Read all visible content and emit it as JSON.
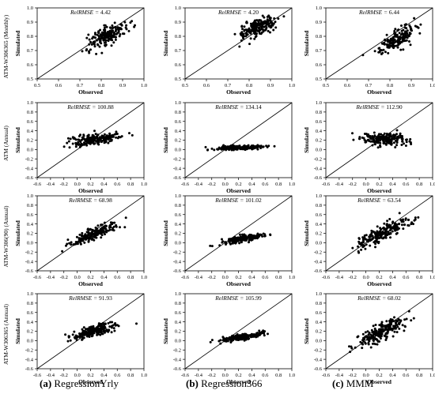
{
  "chart_data": [
    {
      "type": "scatter",
      "row_label": "ATM-W306365 (Monthly)",
      "column_label": "(a) RegressionYrly",
      "xlabel": "Observed",
      "ylabel": "Simulated",
      "metric_label": "RelRMSE",
      "metric_value": "4.42",
      "xlim": [
        0.5,
        1.0
      ],
      "ylim": [
        0.5,
        1.0
      ],
      "xticks": [
        "0.5",
        "0.6",
        "0.7",
        "0.8",
        "0.9",
        "1.0"
      ],
      "yticks": [
        "0.5",
        "0.6",
        "0.7",
        "0.8",
        "0.9",
        "1.0"
      ],
      "one_to_one_line": true,
      "cluster": {
        "x_center": 0.83,
        "x_spread": 0.045,
        "y_center": 0.81,
        "y_spread": 0.035,
        "slope": 0.7,
        "n": 180
      }
    },
    {
      "type": "scatter",
      "row_label": "ATM-W306365 (Monthly)",
      "column_label": "(b) Regression366",
      "xlabel": "Observed",
      "ylabel": "Simulated",
      "metric_label": "RelRMSE",
      "metric_value": "4.20",
      "xlim": [
        0.5,
        1.0
      ],
      "ylim": [
        0.5,
        1.0
      ],
      "xticks": [
        "0.5",
        "0.6",
        "0.7",
        "0.8",
        "0.9",
        "1.0"
      ],
      "yticks": [
        "0.5",
        "0.6",
        "0.7",
        "0.8",
        "0.9",
        "1.0"
      ],
      "one_to_one_line": true,
      "cluster": {
        "x_center": 0.84,
        "x_spread": 0.045,
        "y_center": 0.86,
        "y_spread": 0.03,
        "slope": 0.55,
        "n": 180
      }
    },
    {
      "type": "scatter",
      "row_label": "ATM-W306365 (Monthly)",
      "column_label": "(c) MMM",
      "xlabel": "Observed",
      "ylabel": "Simulated",
      "metric_label": "RelRMSE",
      "metric_value": "6.44",
      "xlim": [
        0.5,
        1.0
      ],
      "ylim": [
        0.5,
        1.0
      ],
      "xticks": [
        "0.5",
        "0.6",
        "0.7",
        "0.8",
        "0.9",
        "1.0"
      ],
      "yticks": [
        "0.5",
        "0.6",
        "0.7",
        "0.8",
        "0.9",
        "1.0"
      ],
      "one_to_one_line": true,
      "cluster": {
        "x_center": 0.83,
        "x_spread": 0.045,
        "y_center": 0.78,
        "y_spread": 0.03,
        "slope": 0.85,
        "n": 180
      }
    },
    {
      "type": "scatter",
      "row_label": "ATM (Annual)",
      "column_label": "(a) RegressionYrly",
      "xlabel": "Observed",
      "ylabel": "Simulated",
      "metric_label": "RelRMSE",
      "metric_value": "100.88",
      "xlim": [
        -0.6,
        1.0
      ],
      "ylim": [
        -0.6,
        1.0
      ],
      "xticks": [
        "-0.6",
        "-0.4",
        "-0.2",
        "0.0",
        "0.2",
        "0.4",
        "0.6",
        "0.8",
        "1.0"
      ],
      "yticks": [
        "-0.6",
        "-0.4",
        "-0.2",
        "0.0",
        "0.2",
        "0.4",
        "0.6",
        "0.8",
        "1.0"
      ],
      "one_to_one_line": true,
      "cluster": {
        "x_center": 0.25,
        "x_spread": 0.18,
        "y_center": 0.22,
        "y_spread": 0.06,
        "slope": 0.15,
        "n": 200
      }
    },
    {
      "type": "scatter",
      "row_label": "ATM (Annual)",
      "column_label": "(b) Regression366",
      "xlabel": "Observed",
      "ylabel": "Simulated",
      "metric_label": "RelRMSE",
      "metric_value": "134.14",
      "xlim": [
        -0.6,
        1.0
      ],
      "ylim": [
        -0.6,
        1.0
      ],
      "xticks": [
        "-0.6",
        "-0.4",
        "-0.2",
        "0.0",
        "0.2",
        "0.4",
        "0.6",
        "0.8",
        "1.0"
      ],
      "yticks": [
        "-0.6",
        "-0.4",
        "-0.2",
        "0.0",
        "0.2",
        "0.4",
        "0.6",
        "0.8",
        "1.0"
      ],
      "one_to_one_line": true,
      "cluster": {
        "x_center": 0.22,
        "x_spread": 0.18,
        "y_center": 0.04,
        "y_spread": 0.025,
        "slope": 0.05,
        "n": 200
      }
    },
    {
      "type": "scatter",
      "row_label": "ATM (Annual)",
      "column_label": "(c) MMM",
      "xlabel": "Observed",
      "ylabel": "Simulated",
      "metric_label": "RelRMSE",
      "metric_value": "112.90",
      "xlim": [
        -0.6,
        1.0
      ],
      "ylim": [
        -0.6,
        1.0
      ],
      "xticks": [
        "-0.6",
        "-0.4",
        "-0.2",
        "0.0",
        "0.2",
        "0.4",
        "0.6",
        "0.8",
        "1.0"
      ],
      "yticks": [
        "-0.6",
        "-0.4",
        "-0.2",
        "0.0",
        "0.2",
        "0.4",
        "0.6",
        "0.8",
        "1.0"
      ],
      "one_to_one_line": true,
      "cluster": {
        "x_center": 0.3,
        "x_spread": 0.18,
        "y_center": 0.22,
        "y_spread": 0.06,
        "slope": 0.02,
        "n": 200
      }
    },
    {
      "type": "scatter",
      "row_label": "ATM-W306(90) (Annual)",
      "column_label": "(a) RegressionYrly",
      "xlabel": "Observed",
      "ylabel": "Simulated",
      "metric_label": "RelRMSE",
      "metric_value": "68.98",
      "xlim": [
        -0.6,
        1.0
      ],
      "ylim": [
        -0.6,
        1.0
      ],
      "xticks": [
        "-0.6",
        "-0.4",
        "-0.2",
        "0.0",
        "0.2",
        "0.4",
        "0.6",
        "0.8",
        "1.0"
      ],
      "yticks": [
        "-0.6",
        "-0.4",
        "-0.2",
        "0.0",
        "0.2",
        "0.4",
        "0.6",
        "0.8",
        "1.0"
      ],
      "one_to_one_line": true,
      "cluster": {
        "x_center": 0.25,
        "x_spread": 0.18,
        "y_center": 0.2,
        "y_spread": 0.06,
        "slope": 0.55,
        "n": 200
      }
    },
    {
      "type": "scatter",
      "row_label": "ATM-W306(90) (Annual)",
      "column_label": "(b) Regression366",
      "xlabel": "Observed",
      "ylabel": "Simulated",
      "metric_label": "RelRMSE",
      "metric_value": "101.02",
      "xlim": [
        -0.6,
        1.0
      ],
      "ylim": [
        -0.6,
        1.0
      ],
      "xticks": [
        "-0.6",
        "-0.4",
        "-0.2",
        "0.0",
        "0.2",
        "0.4",
        "0.6",
        "0.8",
        "1.0"
      ],
      "yticks": [
        "-0.6",
        "-0.4",
        "-0.2",
        "0.0",
        "0.2",
        "0.4",
        "0.6",
        "0.8",
        "1.0"
      ],
      "one_to_one_line": true,
      "cluster": {
        "x_center": 0.25,
        "x_spread": 0.16,
        "y_center": 0.08,
        "y_spread": 0.03,
        "slope": 0.25,
        "n": 200
      }
    },
    {
      "type": "scatter",
      "row_label": "ATM-W306(90) (Annual)",
      "column_label": "(c) MMM",
      "xlabel": "Observed",
      "ylabel": "Simulated",
      "metric_label": "RelRMSE",
      "metric_value": "63.54",
      "xlim": [
        -0.6,
        1.0
      ],
      "ylim": [
        -0.6,
        1.0
      ],
      "xticks": [
        "-0.6",
        "-0.4",
        "-0.2",
        "0.0",
        "0.2",
        "0.4",
        "0.6",
        "0.8",
        "1.0"
      ],
      "yticks": [
        "-0.6",
        "-0.4",
        "-0.2",
        "0.0",
        "0.2",
        "0.4",
        "0.6",
        "0.8",
        "1.0"
      ],
      "one_to_one_line": true,
      "cluster": {
        "x_center": 0.25,
        "x_spread": 0.2,
        "y_center": 0.2,
        "y_spread": 0.08,
        "slope": 0.65,
        "n": 200
      }
    },
    {
      "type": "scatter",
      "row_label": "ATM-W306365 (Annual)",
      "column_label": "(a) RegressionYrly",
      "xlabel": "Observed",
      "ylabel": "Simulated",
      "metric_label": "RelRMSE",
      "metric_value": "91.93",
      "xlim": [
        -0.6,
        1.0
      ],
      "ylim": [
        -0.6,
        1.0
      ],
      "xticks": [
        "-0.6",
        "-0.4",
        "-0.2",
        "0.0",
        "0.2",
        "0.4",
        "0.6",
        "0.8",
        "1.0"
      ],
      "yticks": [
        "-0.6",
        "-0.4",
        "-0.2",
        "0.0",
        "0.2",
        "0.4",
        "0.6",
        "0.8",
        "1.0"
      ],
      "one_to_one_line": true,
      "cluster": {
        "x_center": 0.25,
        "x_spread": 0.18,
        "y_center": 0.2,
        "y_spread": 0.05,
        "slope": 0.3,
        "n": 200
      }
    },
    {
      "type": "scatter",
      "row_label": "ATM-W306365 (Annual)",
      "column_label": "(b) Regression366",
      "xlabel": "Observed",
      "ylabel": "Simulated",
      "metric_label": "RelRMSE",
      "metric_value": "105.99",
      "xlim": [
        -0.6,
        1.0
      ],
      "ylim": [
        -0.6,
        1.0
      ],
      "xticks": [
        "-0.6",
        "-0.4",
        "-0.2",
        "0.0",
        "0.2",
        "0.4",
        "0.6",
        "0.8",
        "1.0"
      ],
      "yticks": [
        "-0.6",
        "-0.4",
        "-0.2",
        "0.0",
        "0.2",
        "0.4",
        "0.6",
        "0.8",
        "1.0"
      ],
      "one_to_one_line": true,
      "cluster": {
        "x_center": 0.25,
        "x_spread": 0.16,
        "y_center": 0.08,
        "y_spread": 0.03,
        "slope": 0.22,
        "n": 200
      }
    },
    {
      "type": "scatter",
      "row_label": "ATM-W306365 (Annual)",
      "column_label": "(c) MMM",
      "xlabel": "Observed",
      "ylabel": "Simulated",
      "metric_label": "RelRMSE",
      "metric_value": "68.02",
      "xlim": [
        -0.6,
        1.0
      ],
      "ylim": [
        -0.6,
        1.0
      ],
      "xticks": [
        "-0.6",
        "-0.4",
        "-0.2",
        "0.0",
        "0.2",
        "0.4",
        "0.6",
        "0.8",
        "1.0"
      ],
      "yticks": [
        "-0.6",
        "-0.4",
        "-0.2",
        "0.0",
        "0.2",
        "0.4",
        "0.6",
        "0.8",
        "1.0"
      ],
      "one_to_one_line": true,
      "cluster": {
        "x_center": 0.25,
        "x_spread": 0.2,
        "y_center": 0.2,
        "y_spread": 0.09,
        "slope": 0.7,
        "n": 220
      }
    }
  ],
  "row_labels": [
    "ATM-W306365 (Monthly)",
    "ATM (Annual)",
    "ATM-W306(90) (Annual)",
    "ATM-W306365 (Annual)"
  ],
  "columns": [
    {
      "letter": "(a)",
      "name": "RegressionYrly"
    },
    {
      "letter": "(b)",
      "name": "Regression366"
    },
    {
      "letter": "(c)",
      "name": "MMM"
    }
  ],
  "colors": {
    "points": "#000000",
    "axes": "#000000",
    "background": "#ffffff"
  }
}
